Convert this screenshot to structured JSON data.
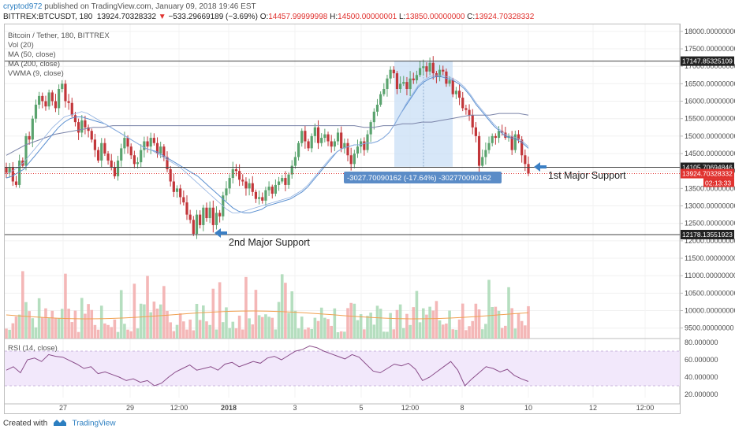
{
  "header": {
    "author": "cryptod972",
    "published": "published on TradingView.com, January 09, 2018 19:46 EST",
    "symbol": "BITTREX:BTCUSDT, 180",
    "last": "13924.70328332",
    "change": "−533.29669189 (−3.69%)",
    "o_label": "O:",
    "o": "14457.99999998",
    "h_label": "H:",
    "h": "14500.00000001",
    "l_label": "L:",
    "l": "13850.00000000",
    "c_label": "C:",
    "c": "13924.70328332"
  },
  "legend": {
    "title": "Bitcoin / Tether, 180, BITTREX",
    "vol": "Vol (20)",
    "ma50": "MA (50, close)",
    "ma200": "MA (200, close)",
    "vwma": "VWMA (9, close)"
  },
  "rsi_label": "RSI (14, close)",
  "footer": {
    "created": "Created with",
    "brand": "TradingView"
  },
  "colors": {
    "up": "#5aa36e",
    "down": "#c2363a",
    "vol_up": "#a8d8b4",
    "vol_down": "#f2aaaa",
    "ma_blue": "#5a8fd0",
    "ma_slate": "#7a83a8",
    "vwma": "#f0a050",
    "rsi": "#8a4d8a",
    "rsi_band": "#f2e8fb",
    "arrow": "#3b7fc4",
    "measure": "#c9dff5",
    "measure_label": "#5b8cc7",
    "badge_dark": "#222222",
    "badge_red": "#e0322f"
  },
  "chart_data": {
    "type": "candlestick",
    "price_ticks": [
      "18000.00000000",
      "17500.00000000",
      "17000.00000000",
      "16500.00000000",
      "16000.00000000",
      "15500.00000000",
      "15000.00000000",
      "14500.00000000",
      "14000.00000000",
      "13500.00000000",
      "13000.00000000",
      "12500.00000000",
      "12000.00000000",
      "11500.00000000",
      "11000.00000000",
      "10500.00000000",
      "10000.00000000",
      "9500.00000000"
    ],
    "price_ylim": [
      9200,
      18200
    ],
    "rsi_ticks": [
      "80.000000",
      "60.000000",
      "40.000000",
      "20.000000"
    ],
    "rsi_ylim": [
      20,
      80
    ],
    "rsi_band": [
      30,
      70
    ],
    "x_ticks": [
      "27",
      "29",
      "12:00",
      "2018",
      "3",
      "5",
      "12:00",
      "8",
      "10",
      "12",
      "12:00"
    ],
    "horizontal_lines": [
      {
        "price": 17147.85325109,
        "label": "17147.85325109"
      },
      {
        "price": 14105.70694846,
        "label": "14105.70694846"
      },
      {
        "price": 12178.13551923,
        "label": "12178.13551923"
      }
    ],
    "last_price": {
      "price": 13924.70328332,
      "label": "13924.70328332",
      "countdown": "02:13:33"
    },
    "measure": {
      "label": "-3027.70090162 (-17.64%) -302770090162",
      "from": 17147.85,
      "to": 14120
    },
    "annotations": [
      {
        "text": "1st Major Support",
        "price": 14105
      },
      {
        "text": "2nd Major Support",
        "price": 12178
      }
    ],
    "closes": [
      13950,
      14100,
      13700,
      13600,
      14300,
      14150,
      15000,
      14900,
      15500,
      15900,
      16150,
      16000,
      15850,
      16250,
      16000,
      15800,
      16350,
      16500,
      16000,
      15950,
      15600,
      15400,
      15100,
      15450,
      15250,
      15150,
      14900,
      14600,
      14300,
      14800,
      14500,
      14300,
      14100,
      13850,
      14300,
      14650,
      14950,
      14700,
      14450,
      14200,
      14250,
      14600,
      14850,
      14700,
      14950,
      14800,
      14500,
      14700,
      14400,
      14050,
      13700,
      13400,
      13500,
      13250,
      13100,
      12750,
      12600,
      12200,
      12750,
      12450,
      12950,
      12650,
      12950,
      12450,
      12800,
      12700,
      13300,
      13500,
      13800,
      14050,
      14000,
      13750,
      13700,
      13500,
      13650,
      13400,
      13200,
      13250,
      13150,
      13450,
      13550,
      13350,
      13600,
      13700,
      13800,
      13600,
      13900,
      14150,
      14400,
      14800,
      15150,
      14850,
      14650,
      15000,
      15250,
      14800,
      14950,
      15050,
      14850,
      14700,
      14850,
      15100,
      14650,
      14800,
      14450,
      14200,
      14500,
      14700,
      14850,
      14600,
      15050,
      15400,
      15700,
      15900,
      16200,
      16350,
      16650,
      16900,
      16800,
      16350,
      16500,
      16550,
      16350,
      16650,
      16600,
      16750,
      16950,
      17000,
      16850,
      17100,
      16800,
      16700,
      16900,
      16850,
      16500,
      16600,
      16200,
      16300,
      16100,
      15800,
      15750,
      15600,
      15250,
      15000,
      14150,
      14400,
      14600,
      14800,
      15000,
      14950,
      15150,
      15100,
      14950,
      15000,
      14600,
      15050,
      14900,
      14450,
      14200,
      13925
    ],
    "ma_blue_series": [
      13800,
      13850,
      13950,
      14050,
      14250,
      14450,
      14650,
      14850,
      15050,
      15250,
      15400,
      15500,
      15550,
      15550,
      15500,
      15450,
      15400,
      15350,
      15250,
      15150,
      15050,
      14950,
      14850,
      14750,
      14650,
      14600,
      14550,
      14450,
      14350,
      14250,
      14150,
      14050,
      13950,
      13850,
      13700,
      13550,
      13400,
      13250,
      13100,
      12950,
      12850,
      12800,
      12800,
      12850,
      12900,
      13000,
      13050,
      13100,
      13150,
      13200,
      13300,
      13400,
      13550,
      13750,
      13950,
      14150,
      14350,
      14550,
      14650,
      14700,
      14750,
      14750,
      14800,
      14800,
      14850,
      14950,
      15100,
      15350,
      15650,
      15900,
      16150,
      16400,
      16550,
      16650,
      16700,
      16700,
      16650,
      16600,
      16500,
      16350,
      16150,
      15900,
      15700,
      15500,
      15300,
      15150,
      15000,
      14950,
      14900,
      14800,
      14650
    ],
    "ma_slate_series": [
      14450,
      14600,
      14750,
      14850,
      14950,
      15050,
      15100,
      15150,
      15200,
      15250,
      15250,
      15300,
      15300,
      15300,
      15300,
      15300,
      15300,
      15300,
      15300,
      15300,
      15300,
      15300,
      15300,
      15300,
      15300,
      15300,
      15300,
      15300,
      15300,
      15300,
      15300,
      15300,
      15300,
      15300,
      15300,
      15300,
      15300,
      15250,
      15250,
      15300,
      15300,
      15350,
      15350,
      15400,
      15400,
      15450,
      15500,
      15550,
      15600,
      15600,
      15600,
      15650,
      15650,
      15650,
      15600
    ],
    "vwma_series": [
      13900,
      14000,
      14100,
      14250,
      14450,
      14650,
      14850,
      15050,
      15250,
      15400,
      15550,
      15600,
      15650,
      15700,
      15650,
      15550,
      15450,
      15350,
      15250,
      15150,
      15050,
      14950,
      14850,
      14750,
      14650,
      14600,
      14500,
      14400,
      14300,
      14200,
      14100,
      13950,
      13800,
      13650,
      13500,
      13350,
      13200,
      13050,
      12900,
      12800,
      12800,
      12850,
      12900,
      12950,
      13000,
      13050,
      13100,
      13150,
      13200,
      13250,
      13350,
      13450,
      13600,
      13800,
      14000,
      14200,
      14400,
      14550,
      14650,
      14700,
      14750,
      14750,
      14800,
      14800,
      14850,
      14950,
      15100,
      15350,
      15650,
      15950,
      16200,
      16450,
      16600,
      16700,
      16750,
      16750,
      16700,
      16650,
      16550,
      16400,
      16200,
      15950,
      15750,
      15550,
      15350,
      15200,
      15050,
      15000,
      14950,
      14850,
      14700
    ],
    "rsi_series": [
      48,
      52,
      45,
      60,
      62,
      58,
      66,
      64,
      63,
      59,
      55,
      50,
      52,
      44,
      46,
      43,
      40,
      36,
      38,
      34,
      36,
      30,
      33,
      40,
      46,
      50,
      54,
      48,
      50,
      52,
      48,
      55,
      57,
      52,
      55,
      58,
      56,
      62,
      64,
      60,
      65,
      70,
      72,
      76,
      74,
      70,
      67,
      64,
      61,
      66,
      63,
      55,
      47,
      45,
      50,
      55,
      53,
      56,
      49,
      36,
      40,
      46,
      52,
      58,
      48,
      30,
      38,
      45,
      52,
      50,
      46,
      49,
      42,
      38,
      35
    ]
  }
}
